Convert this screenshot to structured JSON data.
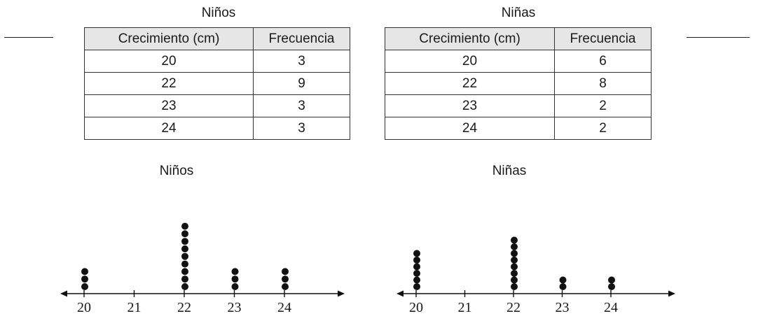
{
  "colors": {
    "ink": "#111111",
    "header_fill": "#e6e6e6"
  },
  "tables": [
    {
      "title": "Niños",
      "headers": [
        "Crecimiento (cm)",
        "Frecuencia"
      ],
      "rows": [
        [
          "20",
          "3"
        ],
        [
          "22",
          "9"
        ],
        [
          "23",
          "3"
        ],
        [
          "24",
          "3"
        ]
      ]
    },
    {
      "title": "Niñas",
      "headers": [
        "Crecimiento (cm)",
        "Frecuencia"
      ],
      "rows": [
        [
          "20",
          "6"
        ],
        [
          "22",
          "8"
        ],
        [
          "23",
          "2"
        ],
        [
          "24",
          "2"
        ]
      ]
    }
  ],
  "chart_data": [
    {
      "type": "scatter",
      "title": "Niños",
      "x_ticks": [
        20,
        21,
        22,
        23,
        24
      ],
      "xlim": [
        19.5,
        24.9
      ],
      "points": [
        {
          "x": 20,
          "count": 3
        },
        {
          "x": 22,
          "count": 9
        },
        {
          "x": 23,
          "count": 3
        },
        {
          "x": 24,
          "count": 3
        }
      ]
    },
    {
      "type": "scatter",
      "title": "Niñas",
      "x_ticks": [
        20,
        21,
        22,
        23,
        24
      ],
      "xlim": [
        19.5,
        25.3
      ],
      "points": [
        {
          "x": 20,
          "count": 6
        },
        {
          "x": 22,
          "count": 8
        },
        {
          "x": 23,
          "count": 2
        },
        {
          "x": 24,
          "count": 2
        }
      ]
    }
  ]
}
